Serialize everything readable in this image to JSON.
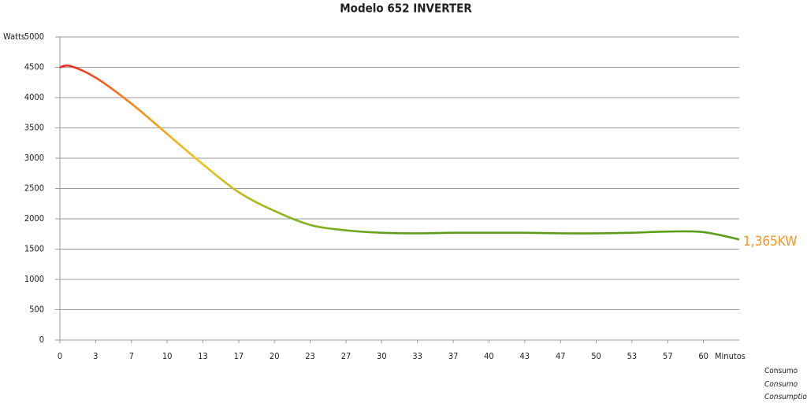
{
  "chart_data": {
    "type": "line",
    "title": "Modelo 652 INVERTER",
    "y_label": "Watts",
    "x_label": "Minutos",
    "x": [
      0,
      1,
      3.33,
      6.67,
      10,
      13.33,
      16.67,
      20,
      23.33,
      26.67,
      30,
      33.33,
      36.67,
      40,
      43.33,
      46.67,
      50,
      53.33,
      56.67,
      60,
      63.33
    ],
    "series": [
      {
        "name": "Consumo",
        "gradient": [
          "#e8231b",
          "#f7941d",
          "#f2c21a",
          "#8db51e",
          "#5a9e1a"
        ],
        "values": [
          4500,
          4520,
          4330,
          3900,
          3400,
          2900,
          2440,
          2130,
          1900,
          1810,
          1770,
          1760,
          1770,
          1770,
          1770,
          1760,
          1760,
          1770,
          1790,
          1780,
          1660
        ]
      }
    ],
    "legend_extra": [
      "Consumo",
      "Consumption"
    ],
    "annotation": "1,365KW",
    "xlim": [
      0,
      63.33
    ],
    "xticks": [
      0,
      {
        "value": 3.33,
        "label": "3"
      },
      {
        "value": 6.67,
        "label": "7"
      },
      10,
      {
        "value": 13.33,
        "label": "13"
      },
      {
        "value": 16.67,
        "label": "17"
      },
      20,
      {
        "value": 23.33,
        "label": "23"
      },
      {
        "value": 26.67,
        "label": "27"
      },
      30,
      {
        "value": 33.33,
        "label": "33"
      },
      {
        "value": 36.67,
        "label": "37"
      },
      40,
      {
        "value": 43.33,
        "label": "43"
      },
      {
        "value": 46.67,
        "label": "47"
      },
      50,
      {
        "value": 53.33,
        "label": "53"
      },
      {
        "value": 56.67,
        "label": "57"
      },
      60
    ],
    "ylim": [
      0,
      5000
    ],
    "yticks": [
      0,
      500,
      1000,
      1500,
      2000,
      2500,
      3000,
      3500,
      4000,
      4500,
      5000
    ],
    "grid": true
  }
}
